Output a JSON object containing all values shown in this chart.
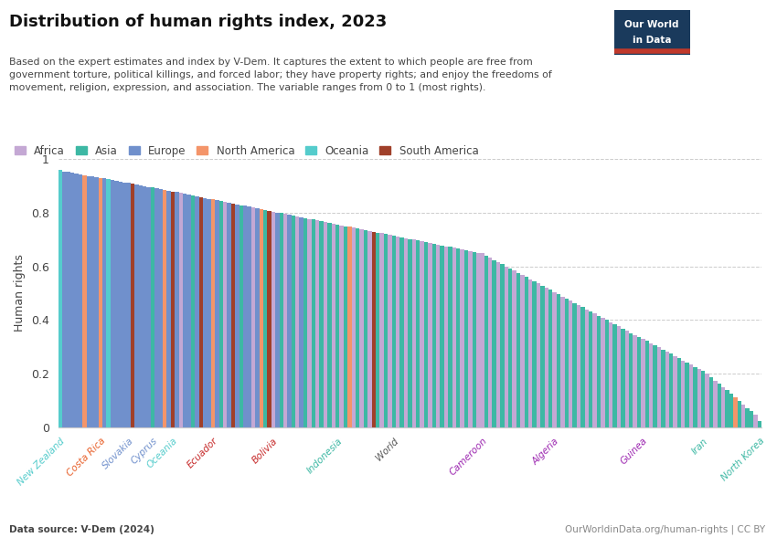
{
  "title": "Distribution of human rights index, 2023",
  "subtitle": "Based on the expert estimates and index by V-Dem. It captures the extent to which people are free from\ngovernment torture, political killings, and forced labor; they have property rights; and enjoy the freedoms of\nmovement, religion, expression, and association. The variable ranges from 0 to 1 (most rights).",
  "ylabel": "Human rights",
  "data_source": "Data source: V-Dem (2024)",
  "url": "OurWorldinData.org/human-rights | CC BY",
  "region_colors": {
    "Africa": "#C4A8D4",
    "Asia": "#3DB8A4",
    "Europe": "#7090CC",
    "North America": "#F4956A",
    "Oceania": "#55CCCC",
    "South America": "#A0402A"
  },
  "legend_order": [
    "Africa",
    "Asia",
    "Europe",
    "North America",
    "Oceania",
    "South America"
  ],
  "background_color": "#ffffff",
  "grid_color": "#cccccc",
  "yticks": [
    0,
    0.2,
    0.4,
    0.6,
    0.8,
    1.0
  ],
  "labeled_countries": {
    "New Zealand": {
      "value": 0.958,
      "region": "Oceania",
      "label_color": "#55CCCC"
    },
    "Costa Rica": {
      "value": 0.93,
      "region": "North America",
      "label_color": "#E8602A"
    },
    "Slovakia": {
      "value": 0.91,
      "region": "Europe",
      "label_color": "#7090CC"
    },
    "Cyprus": {
      "value": 0.892,
      "region": "Europe",
      "label_color": "#7090CC"
    },
    "Oceania": {
      "value": 0.878,
      "region": "Oceania",
      "label_color": "#55CCCC"
    },
    "Ecuador": {
      "value": 0.848,
      "region": "South America",
      "label_color": "#C62828"
    },
    "Bolivia": {
      "value": 0.805,
      "region": "South America",
      "label_color": "#C62828"
    },
    "Indonesia": {
      "value": 0.755,
      "region": "Asia",
      "label_color": "#3DB8A4"
    },
    "World": {
      "value": 0.715,
      "region": "Asia",
      "label_color": "#555555"
    },
    "Cameroon": {
      "value": 0.648,
      "region": "Africa",
      "label_color": "#9C27B0"
    },
    "Algeria": {
      "value": 0.5,
      "region": "Africa",
      "label_color": "#9C27B0"
    },
    "Guinea": {
      "value": 0.33,
      "region": "Africa",
      "label_color": "#9C27B0"
    },
    "Iran": {
      "value": 0.21,
      "region": "Asia",
      "label_color": "#3DB8A4"
    },
    "North Korea": {
      "value": 0.025,
      "region": "Asia",
      "label_color": "#3DB8A4"
    }
  },
  "all_countries": [
    {
      "value": 0.958,
      "region": "Oceania"
    },
    {
      "value": 0.954,
      "region": "Europe"
    },
    {
      "value": 0.951,
      "region": "Europe"
    },
    {
      "value": 0.948,
      "region": "Europe"
    },
    {
      "value": 0.945,
      "region": "Europe"
    },
    {
      "value": 0.942,
      "region": "Europe"
    },
    {
      "value": 0.94,
      "region": "North America"
    },
    {
      "value": 0.937,
      "region": "Europe"
    },
    {
      "value": 0.934,
      "region": "Europe"
    },
    {
      "value": 0.931,
      "region": "Europe"
    },
    {
      "value": 0.93,
      "region": "North America"
    },
    {
      "value": 0.927,
      "region": "Europe"
    },
    {
      "value": 0.924,
      "region": "Oceania"
    },
    {
      "value": 0.921,
      "region": "Europe"
    },
    {
      "value": 0.919,
      "region": "Europe"
    },
    {
      "value": 0.916,
      "region": "Europe"
    },
    {
      "value": 0.913,
      "region": "Europe"
    },
    {
      "value": 0.91,
      "region": "Europe"
    },
    {
      "value": 0.908,
      "region": "South America"
    },
    {
      "value": 0.905,
      "region": "Europe"
    },
    {
      "value": 0.902,
      "region": "Europe"
    },
    {
      "value": 0.899,
      "region": "Europe"
    },
    {
      "value": 0.896,
      "region": "Europe"
    },
    {
      "value": 0.893,
      "region": "Asia"
    },
    {
      "value": 0.891,
      "region": "Europe"
    },
    {
      "value": 0.888,
      "region": "Europe"
    },
    {
      "value": 0.885,
      "region": "North America"
    },
    {
      "value": 0.882,
      "region": "Europe"
    },
    {
      "value": 0.879,
      "region": "South America"
    },
    {
      "value": 0.876,
      "region": "Europe"
    },
    {
      "value": 0.873,
      "region": "Africa"
    },
    {
      "value": 0.87,
      "region": "Europe"
    },
    {
      "value": 0.867,
      "region": "Europe"
    },
    {
      "value": 0.864,
      "region": "Asia"
    },
    {
      "value": 0.861,
      "region": "Europe"
    },
    {
      "value": 0.858,
      "region": "South America"
    },
    {
      "value": 0.855,
      "region": "Europe"
    },
    {
      "value": 0.852,
      "region": "Europe"
    },
    {
      "value": 0.849,
      "region": "North America"
    },
    {
      "value": 0.846,
      "region": "Europe"
    },
    {
      "value": 0.843,
      "region": "Asia"
    },
    {
      "value": 0.84,
      "region": "Africa"
    },
    {
      "value": 0.837,
      "region": "Europe"
    },
    {
      "value": 0.834,
      "region": "South America"
    },
    {
      "value": 0.831,
      "region": "Europe"
    },
    {
      "value": 0.828,
      "region": "Asia"
    },
    {
      "value": 0.825,
      "region": "Europe"
    },
    {
      "value": 0.822,
      "region": "Europe"
    },
    {
      "value": 0.819,
      "region": "Africa"
    },
    {
      "value": 0.816,
      "region": "Europe"
    },
    {
      "value": 0.813,
      "region": "North America"
    },
    {
      "value": 0.81,
      "region": "Asia"
    },
    {
      "value": 0.807,
      "region": "South America"
    },
    {
      "value": 0.804,
      "region": "Africa"
    },
    {
      "value": 0.801,
      "region": "Europe"
    },
    {
      "value": 0.798,
      "region": "Asia"
    },
    {
      "value": 0.795,
      "region": "Africa"
    },
    {
      "value": 0.792,
      "region": "Europe"
    },
    {
      "value": 0.789,
      "region": "Asia"
    },
    {
      "value": 0.786,
      "region": "Africa"
    },
    {
      "value": 0.783,
      "region": "Europe"
    },
    {
      "value": 0.78,
      "region": "Asia"
    },
    {
      "value": 0.777,
      "region": "Africa"
    },
    {
      "value": 0.774,
      "region": "Asia"
    },
    {
      "value": 0.771,
      "region": "Africa"
    },
    {
      "value": 0.768,
      "region": "Asia"
    },
    {
      "value": 0.765,
      "region": "Africa"
    },
    {
      "value": 0.762,
      "region": "Asia"
    },
    {
      "value": 0.759,
      "region": "Africa"
    },
    {
      "value": 0.756,
      "region": "Asia"
    },
    {
      "value": 0.753,
      "region": "Africa"
    },
    {
      "value": 0.75,
      "region": "Asia"
    },
    {
      "value": 0.747,
      "region": "North America"
    },
    {
      "value": 0.744,
      "region": "Africa"
    },
    {
      "value": 0.741,
      "region": "Asia"
    },
    {
      "value": 0.738,
      "region": "Africa"
    },
    {
      "value": 0.735,
      "region": "Asia"
    },
    {
      "value": 0.732,
      "region": "Africa"
    },
    {
      "value": 0.729,
      "region": "South America"
    },
    {
      "value": 0.726,
      "region": "Asia"
    },
    {
      "value": 0.723,
      "region": "Africa"
    },
    {
      "value": 0.72,
      "region": "Asia"
    },
    {
      "value": 0.717,
      "region": "Africa"
    },
    {
      "value": 0.714,
      "region": "Asia"
    },
    {
      "value": 0.711,
      "region": "Africa"
    },
    {
      "value": 0.708,
      "region": "Asia"
    },
    {
      "value": 0.705,
      "region": "Africa"
    },
    {
      "value": 0.702,
      "region": "Asia"
    },
    {
      "value": 0.699,
      "region": "Africa"
    },
    {
      "value": 0.696,
      "region": "Asia"
    },
    {
      "value": 0.693,
      "region": "Africa"
    },
    {
      "value": 0.69,
      "region": "Asia"
    },
    {
      "value": 0.687,
      "region": "Africa"
    },
    {
      "value": 0.684,
      "region": "Asia"
    },
    {
      "value": 0.681,
      "region": "Africa"
    },
    {
      "value": 0.678,
      "region": "Asia"
    },
    {
      "value": 0.675,
      "region": "Africa"
    },
    {
      "value": 0.672,
      "region": "Asia"
    },
    {
      "value": 0.669,
      "region": "Africa"
    },
    {
      "value": 0.666,
      "region": "Asia"
    },
    {
      "value": 0.663,
      "region": "Africa"
    },
    {
      "value": 0.66,
      "region": "Asia"
    },
    {
      "value": 0.657,
      "region": "Africa"
    },
    {
      "value": 0.654,
      "region": "Asia"
    },
    {
      "value": 0.651,
      "region": "Africa"
    },
    {
      "value": 0.648,
      "region": "Africa"
    },
    {
      "value": 0.64,
      "region": "Asia"
    },
    {
      "value": 0.632,
      "region": "Africa"
    },
    {
      "value": 0.624,
      "region": "Asia"
    },
    {
      "value": 0.616,
      "region": "Africa"
    },
    {
      "value": 0.608,
      "region": "Asia"
    },
    {
      "value": 0.6,
      "region": "Africa"
    },
    {
      "value": 0.592,
      "region": "Asia"
    },
    {
      "value": 0.584,
      "region": "Africa"
    },
    {
      "value": 0.576,
      "region": "Asia"
    },
    {
      "value": 0.568,
      "region": "Africa"
    },
    {
      "value": 0.56,
      "region": "Asia"
    },
    {
      "value": 0.552,
      "region": "Africa"
    },
    {
      "value": 0.544,
      "region": "Asia"
    },
    {
      "value": 0.536,
      "region": "Africa"
    },
    {
      "value": 0.528,
      "region": "Asia"
    },
    {
      "value": 0.52,
      "region": "Africa"
    },
    {
      "value": 0.512,
      "region": "Asia"
    },
    {
      "value": 0.504,
      "region": "Africa"
    },
    {
      "value": 0.496,
      "region": "Asia"
    },
    {
      "value": 0.488,
      "region": "Africa"
    },
    {
      "value": 0.48,
      "region": "Asia"
    },
    {
      "value": 0.472,
      "region": "Africa"
    },
    {
      "value": 0.464,
      "region": "Asia"
    },
    {
      "value": 0.456,
      "region": "Africa"
    },
    {
      "value": 0.448,
      "region": "Asia"
    },
    {
      "value": 0.44,
      "region": "Africa"
    },
    {
      "value": 0.432,
      "region": "Asia"
    },
    {
      "value": 0.424,
      "region": "Africa"
    },
    {
      "value": 0.416,
      "region": "Asia"
    },
    {
      "value": 0.408,
      "region": "Africa"
    },
    {
      "value": 0.4,
      "region": "Asia"
    },
    {
      "value": 0.392,
      "region": "Africa"
    },
    {
      "value": 0.384,
      "region": "Asia"
    },
    {
      "value": 0.376,
      "region": "Africa"
    },
    {
      "value": 0.368,
      "region": "Asia"
    },
    {
      "value": 0.36,
      "region": "Africa"
    },
    {
      "value": 0.352,
      "region": "Asia"
    },
    {
      "value": 0.344,
      "region": "Africa"
    },
    {
      "value": 0.336,
      "region": "Asia"
    },
    {
      "value": 0.33,
      "region": "Africa"
    },
    {
      "value": 0.322,
      "region": "Asia"
    },
    {
      "value": 0.314,
      "region": "Africa"
    },
    {
      "value": 0.306,
      "region": "Asia"
    },
    {
      "value": 0.298,
      "region": "Africa"
    },
    {
      "value": 0.29,
      "region": "Asia"
    },
    {
      "value": 0.282,
      "region": "Africa"
    },
    {
      "value": 0.274,
      "region": "Asia"
    },
    {
      "value": 0.266,
      "region": "Africa"
    },
    {
      "value": 0.258,
      "region": "Asia"
    },
    {
      "value": 0.25,
      "region": "Africa"
    },
    {
      "value": 0.242,
      "region": "Asia"
    },
    {
      "value": 0.234,
      "region": "Africa"
    },
    {
      "value": 0.226,
      "region": "Asia"
    },
    {
      "value": 0.218,
      "region": "Africa"
    },
    {
      "value": 0.21,
      "region": "Asia"
    },
    {
      "value": 0.2,
      "region": "Africa"
    },
    {
      "value": 0.188,
      "region": "Asia"
    },
    {
      "value": 0.175,
      "region": "Africa"
    },
    {
      "value": 0.162,
      "region": "Asia"
    },
    {
      "value": 0.15,
      "region": "Africa"
    },
    {
      "value": 0.138,
      "region": "Asia"
    },
    {
      "value": 0.125,
      "region": "Asia"
    },
    {
      "value": 0.112,
      "region": "North America"
    },
    {
      "value": 0.099,
      "region": "Asia"
    },
    {
      "value": 0.086,
      "region": "Africa"
    },
    {
      "value": 0.073,
      "region": "Asia"
    },
    {
      "value": 0.06,
      "region": "Asia"
    },
    {
      "value": 0.047,
      "region": "Africa"
    },
    {
      "value": 0.025,
      "region": "Asia"
    }
  ]
}
